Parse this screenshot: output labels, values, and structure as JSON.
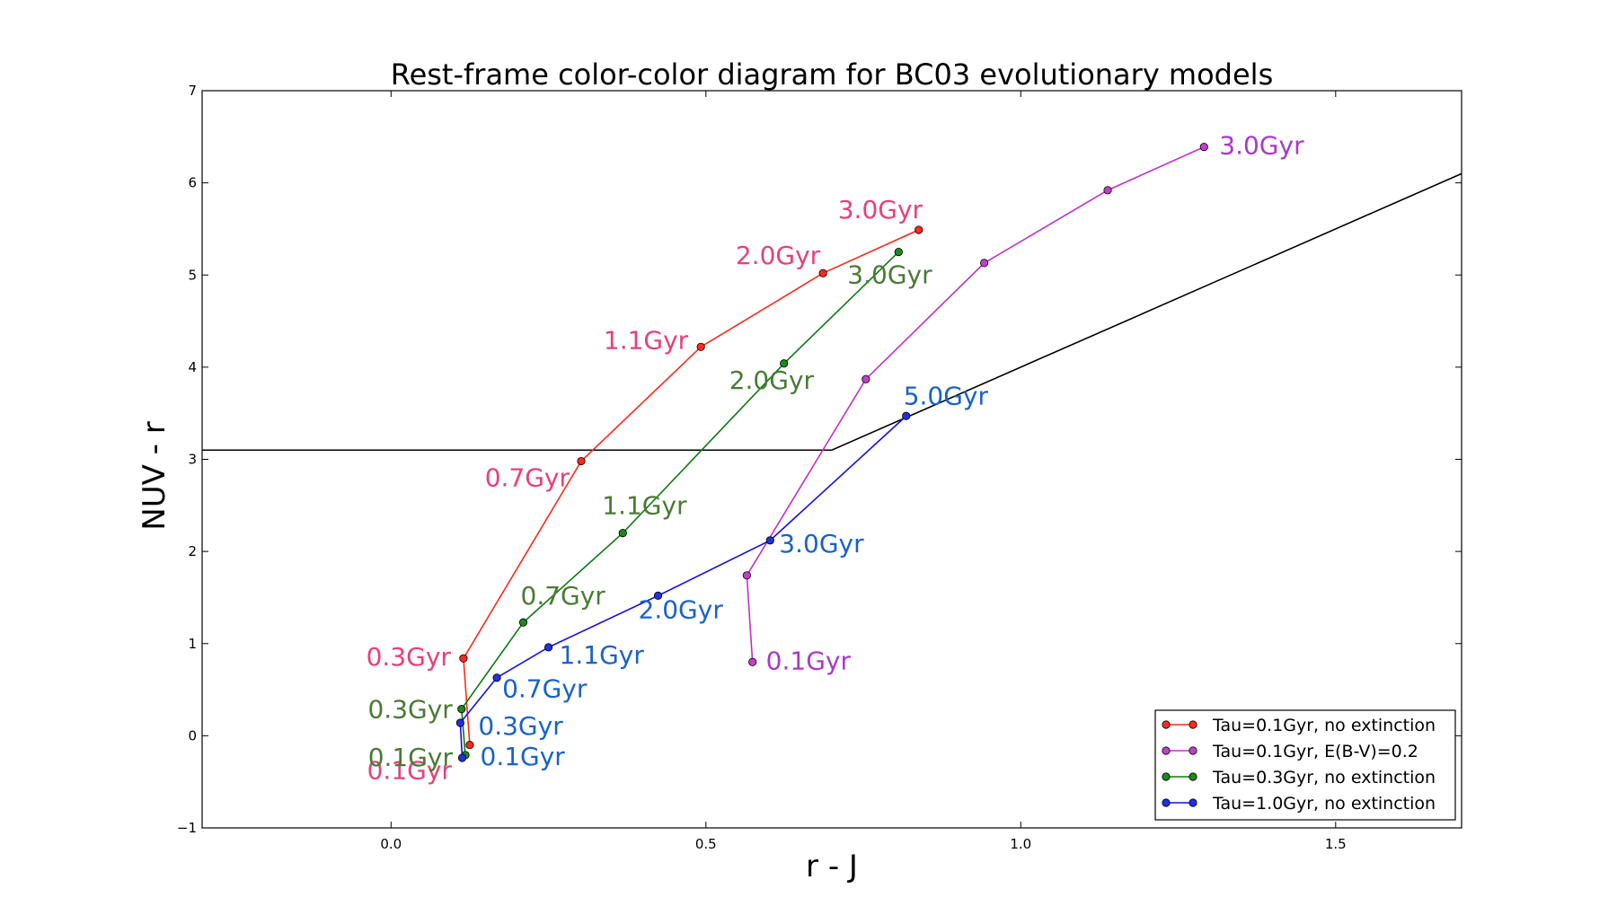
{
  "chart_data": {
    "type": "line",
    "title": "Rest-frame color-color diagram for BC03 evolutionary models",
    "xlabel": "r - J",
    "ylabel": "NUV - r",
    "xlim": [
      -0.3,
      1.7
    ],
    "ylim": [
      -1,
      7
    ],
    "xticks": [
      0.0,
      0.5,
      1.0,
      1.5
    ],
    "xtick_labels": [
      "0.0",
      "0.5",
      "1.0",
      "1.5"
    ],
    "yticks": [
      -1,
      0,
      1,
      2,
      3,
      4,
      5,
      6,
      7
    ],
    "ytick_labels": [
      "−1",
      "0",
      "1",
      "2",
      "3",
      "4",
      "5",
      "6",
      "7"
    ],
    "grid": false,
    "legend_position": "lower-right",
    "series": [
      {
        "name": "Tau=0.1Gyr, no extinction",
        "line_color": "#ff2a1a",
        "marker_color": "#ff2a1a",
        "label_color": "#e8407a",
        "x": [
          0.125,
          0.115,
          0.302,
          0.492,
          0.686,
          0.838
        ],
        "y": [
          -0.1,
          0.84,
          2.98,
          4.22,
          5.02,
          5.49
        ],
        "labels": [
          "0.1Gyr",
          "0.3Gyr",
          "0.7Gyr",
          "1.1Gyr",
          "2.0Gyr",
          "3.0Gyr"
        ]
      },
      {
        "name": "Tau=0.1Gyr, E(B-V)=0.2",
        "line_color": "#c030c8",
        "marker_color": "#c040c8",
        "label_color": "#a83ac8",
        "x": [
          0.574,
          0.565,
          0.754,
          0.942,
          1.138,
          1.291
        ],
        "y": [
          0.8,
          1.74,
          3.87,
          5.13,
          5.92,
          6.39
        ],
        "labels": [
          "0.1Gyr",
          "",
          "",
          "",
          "",
          "3.0Gyr"
        ]
      },
      {
        "name": "Tau=0.3Gyr, no extinction",
        "line_color": "#0b7a10",
        "marker_color": "#1a8a1a",
        "label_color": "#4a7a34",
        "x": [
          0.118,
          0.112,
          0.21,
          0.368,
          0.624,
          0.806
        ],
        "y": [
          -0.21,
          0.29,
          1.23,
          2.2,
          4.04,
          5.25
        ],
        "labels": [
          "0.1Gyr",
          "0.3Gyr",
          "0.7Gyr",
          "1.1Gyr",
          "2.0Gyr",
          "3.0Gyr"
        ]
      },
      {
        "name": "Tau=1.0Gyr, no extinction",
        "line_color": "#1010e8",
        "marker_color": "#2030e0",
        "label_color": "#1a62c8",
        "x": [
          0.113,
          0.11,
          0.168,
          0.25,
          0.424,
          0.602,
          0.818
        ],
        "y": [
          -0.24,
          0.14,
          0.63,
          0.96,
          1.52,
          2.12,
          3.47
        ],
        "labels": [
          "0.1Gyr",
          "0.3Gyr",
          "0.7Gyr",
          "1.1Gyr",
          "2.0Gyr",
          "3.0Gyr",
          "5.0Gyr"
        ]
      }
    ],
    "selection_boundary": {
      "color": "#000000",
      "x": [
        -0.3,
        0.7,
        1.7
      ],
      "y": [
        3.1,
        3.1,
        6.1
      ]
    }
  }
}
